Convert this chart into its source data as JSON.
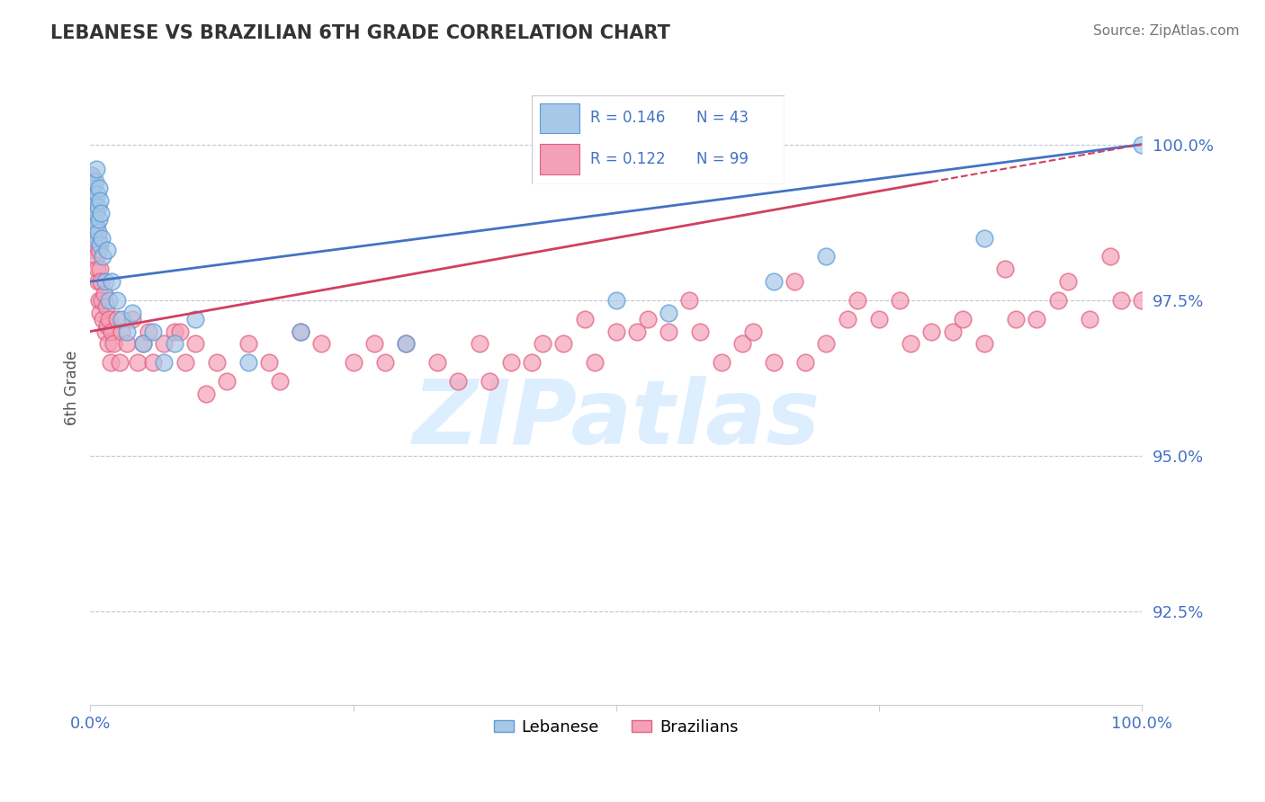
{
  "title": "LEBANESE VS BRAZILIAN 6TH GRADE CORRELATION CHART",
  "source": "Source: ZipAtlas.com",
  "ylabel": "6th Grade",
  "xlim": [
    0.0,
    100.0
  ],
  "ylim": [
    91.0,
    101.2
  ],
  "yticks": [
    92.5,
    95.0,
    97.5,
    100.0
  ],
  "ytick_labels": [
    "92.5%",
    "95.0%",
    "97.5%",
    "100.0%"
  ],
  "blue_color": "#a8c8e8",
  "pink_color": "#f4a0b8",
  "blue_edge_color": "#5b9bd5",
  "pink_edge_color": "#e06080",
  "blue_line_color": "#4472c4",
  "pink_line_color": "#d04060",
  "watermark": "ZIPatlas",
  "watermark_color": "#ddeeff",
  "legend_text_color": "#4472c4",
  "axis_text_color": "#4472c4",
  "title_color": "#333333",
  "lebanese_x": [
    0.1,
    0.15,
    0.2,
    0.25,
    0.3,
    0.35,
    0.4,
    0.45,
    0.5,
    0.55,
    0.6,
    0.65,
    0.7,
    0.75,
    0.8,
    0.85,
    0.9,
    0.95,
    1.0,
    1.1,
    1.2,
    1.4,
    1.6,
    1.8,
    2.0,
    2.5,
    3.0,
    3.5,
    4.0,
    5.0,
    6.0,
    7.0,
    8.0,
    10.0,
    15.0,
    20.0,
    30.0,
    50.0,
    85.0,
    100.0,
    55.0,
    70.0,
    65.0
  ],
  "lebanese_y": [
    99.2,
    99.5,
    98.8,
    99.3,
    99.0,
    98.5,
    99.1,
    99.4,
    98.7,
    99.6,
    98.9,
    99.2,
    98.6,
    99.0,
    98.8,
    99.3,
    98.4,
    99.1,
    98.9,
    98.5,
    98.2,
    97.8,
    98.3,
    97.5,
    97.8,
    97.5,
    97.2,
    97.0,
    97.3,
    96.8,
    97.0,
    96.5,
    96.8,
    97.2,
    96.5,
    97.0,
    96.8,
    97.5,
    98.5,
    100.0,
    97.3,
    98.2,
    97.8
  ],
  "brazilian_x": [
    0.05,
    0.1,
    0.15,
    0.2,
    0.25,
    0.3,
    0.35,
    0.4,
    0.45,
    0.5,
    0.55,
    0.6,
    0.65,
    0.7,
    0.75,
    0.8,
    0.85,
    0.9,
    0.95,
    1.0,
    1.1,
    1.2,
    1.3,
    1.4,
    1.5,
    1.6,
    1.7,
    1.8,
    1.9,
    2.0,
    2.2,
    2.5,
    2.8,
    3.0,
    3.5,
    4.0,
    4.5,
    5.0,
    5.5,
    6.0,
    7.0,
    8.0,
    9.0,
    10.0,
    12.0,
    15.0,
    18.0,
    20.0,
    25.0,
    30.0,
    35.0,
    40.0,
    50.0,
    60.0,
    70.0,
    80.0,
    90.0,
    100.0,
    45.0,
    55.0,
    65.0,
    75.0,
    85.0,
    95.0,
    28.0,
    22.0,
    38.0,
    48.0,
    58.0,
    68.0,
    78.0,
    88.0,
    98.0,
    42.0,
    52.0,
    62.0,
    72.0,
    82.0,
    92.0,
    33.0,
    43.0,
    53.0,
    63.0,
    73.0,
    83.0,
    93.0,
    37.0,
    47.0,
    57.0,
    67.0,
    77.0,
    87.0,
    97.0,
    27.0,
    17.0,
    13.0,
    11.0,
    8.5
  ],
  "brazilian_y": [
    99.5,
    99.2,
    98.8,
    99.4,
    98.6,
    99.0,
    98.3,
    99.1,
    98.5,
    98.9,
    98.2,
    98.7,
    98.0,
    98.5,
    97.8,
    98.3,
    97.5,
    98.0,
    97.3,
    97.8,
    97.5,
    97.2,
    97.6,
    97.0,
    97.4,
    97.1,
    96.8,
    97.2,
    96.5,
    97.0,
    96.8,
    97.2,
    96.5,
    97.0,
    96.8,
    97.2,
    96.5,
    96.8,
    97.0,
    96.5,
    96.8,
    97.0,
    96.5,
    96.8,
    96.5,
    96.8,
    96.2,
    97.0,
    96.5,
    96.8,
    96.2,
    96.5,
    97.0,
    96.5,
    96.8,
    97.0,
    97.2,
    97.5,
    96.8,
    97.0,
    96.5,
    97.2,
    96.8,
    97.2,
    96.5,
    96.8,
    96.2,
    96.5,
    97.0,
    96.5,
    96.8,
    97.2,
    97.5,
    96.5,
    97.0,
    96.8,
    97.2,
    97.0,
    97.5,
    96.5,
    96.8,
    97.2,
    97.0,
    97.5,
    97.2,
    97.8,
    96.8,
    97.2,
    97.5,
    97.8,
    97.5,
    98.0,
    98.2,
    96.8,
    96.5,
    96.2,
    96.0,
    97.0
  ],
  "blue_line_start_x": 0.0,
  "blue_line_start_y": 97.8,
  "blue_line_end_x": 100.0,
  "blue_line_end_y": 100.0,
  "pink_line_start_x": 0.0,
  "pink_line_start_y": 97.0,
  "pink_line_solid_end_x": 80.0,
  "pink_line_solid_end_y": 99.4,
  "pink_line_dash_end_x": 100.0,
  "pink_line_dash_end_y": 100.0
}
